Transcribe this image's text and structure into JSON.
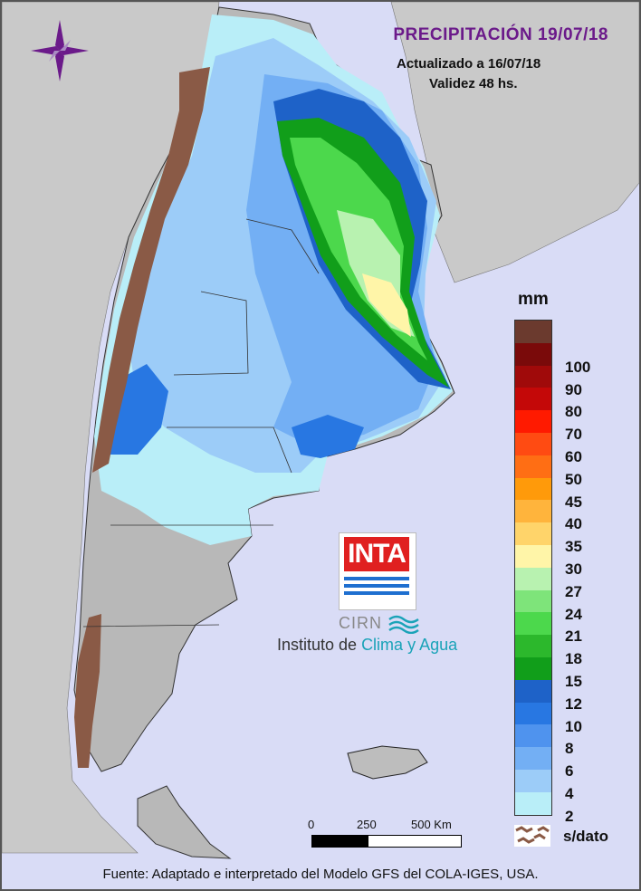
{
  "header": {
    "title": "PRECIPITACIÓN 19/07/18",
    "updated": "Actualizado a 16/07/18",
    "validity": "Validez 48 hs."
  },
  "legend": {
    "unit": "mm",
    "nodata_label": "s/dato",
    "classes": [
      {
        "label": "",
        "color": "#6b3a2e"
      },
      {
        "label": "100",
        "color": "#7a0a0a"
      },
      {
        "label": "90",
        "color": "#a00a0a"
      },
      {
        "label": "80",
        "color": "#c40808"
      },
      {
        "label": "70",
        "color": "#ff1a00"
      },
      {
        "label": "60",
        "color": "#ff4b12"
      },
      {
        "label": "50",
        "color": "#ff6e14"
      },
      {
        "label": "45",
        "color": "#ff9a0a"
      },
      {
        "label": "40",
        "color": "#ffb43c"
      },
      {
        "label": "35",
        "color": "#ffd46a"
      },
      {
        "label": "30",
        "color": "#fff5a8"
      },
      {
        "label": "27",
        "color": "#b8f2b0"
      },
      {
        "label": "24",
        "color": "#7ee47a"
      },
      {
        "label": "21",
        "color": "#4cd84c"
      },
      {
        "label": "18",
        "color": "#2cb82c"
      },
      {
        "label": "15",
        "color": "#119e1a"
      },
      {
        "label": "12",
        "color": "#1e62c8"
      },
      {
        "label": "10",
        "color": "#2877e2"
      },
      {
        "label": "8",
        "color": "#4f93ee"
      },
      {
        "label": "6",
        "color": "#73aff4"
      },
      {
        "label": "4",
        "color": "#9cccf8"
      },
      {
        "label": "2",
        "color": "#b9eef8"
      }
    ]
  },
  "scale": {
    "labels": [
      "0",
      "250",
      "500 Km"
    ]
  },
  "logo": {
    "brand": "INTA",
    "sub": "CIRN",
    "institute_plain": "Instituto de ",
    "institute_accent": "Clima y Agua"
  },
  "footer": "Fuente: Adaptado e interpretado del Modelo GFS del COLA-IGES, USA.",
  "colors": {
    "ocean": "#d9dcf6",
    "land_outside": "#cfcfcf",
    "relief": "#aaaaaa",
    "nodata": "#8a5a46",
    "title": "#6b1a8a"
  }
}
